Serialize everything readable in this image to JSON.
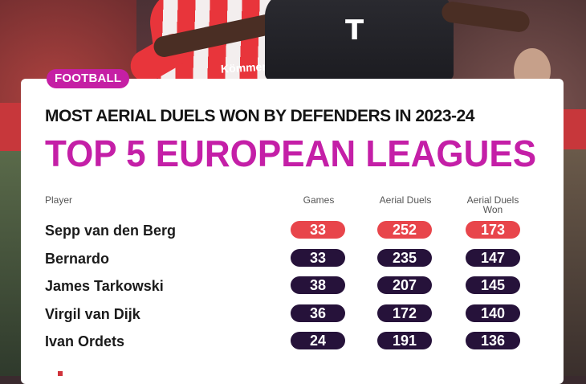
{
  "badge": "FOOTBALL",
  "photo": {
    "shirt_text": "Kömmerı",
    "sponsor_logo": "T"
  },
  "chart_data": {
    "type": "table",
    "title": "MOST AERIAL DUELS WON BY DEFENDERS IN 2023-24",
    "subtitle": "TOP 5 EUROPEAN LEAGUES",
    "columns": [
      "Player",
      "Games",
      "Aerial Duels",
      "Aerial Duels Won"
    ],
    "rows": [
      {
        "player": "Sepp van den Berg",
        "games": 33,
        "aerial_duels": 252,
        "aerial_duels_won": 173,
        "highlight": true
      },
      {
        "player": "Bernardo",
        "games": 33,
        "aerial_duels": 235,
        "aerial_duels_won": 147,
        "highlight": false
      },
      {
        "player": "James Tarkowski",
        "games": 38,
        "aerial_duels": 207,
        "aerial_duels_won": 145,
        "highlight": false
      },
      {
        "player": "Virgil van Dijk",
        "games": 36,
        "aerial_duels": 172,
        "aerial_duels_won": 140,
        "highlight": false
      },
      {
        "player": "Ivan Ordets",
        "games": 24,
        "aerial_duels": 191,
        "aerial_duels_won": 136,
        "highlight": false
      }
    ]
  },
  "colors": {
    "highlight_pill": "#e8454b",
    "default_pill": "#26123a",
    "accent": "#c41fa7"
  }
}
